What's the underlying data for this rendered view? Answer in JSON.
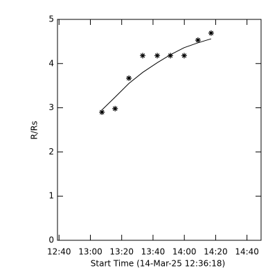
{
  "chart_data": {
    "type": "scatter",
    "x_label": "Start Time (14-Mar-25 12:36:18)",
    "y_label": "R/Rs",
    "x": [
      67.4,
      75.8,
      84.6,
      93.4,
      102.7,
      111.1,
      119.9,
      128.7,
      137.1
    ],
    "series": [
      {
        "style": "markers",
        "color": "#000000",
        "values": [
          2.9,
          2.98,
          3.67,
          4.18,
          4.18,
          4.18,
          4.18,
          4.53,
          4.69
        ]
      },
      {
        "style": "line",
        "color": "#000000",
        "values": [
          2.95,
          3.24,
          3.55,
          3.8,
          4.02,
          4.2,
          4.36,
          4.47,
          4.56
        ]
      }
    ],
    "xlim": [
      39,
      169
    ],
    "ylim": [
      0,
      5
    ],
    "xticks": [
      {
        "value": 40,
        "label": "12:40"
      },
      {
        "value": 60,
        "label": "13:00"
      },
      {
        "value": 80,
        "label": "13:20"
      },
      {
        "value": 100,
        "label": "13:40"
      },
      {
        "value": 120,
        "label": "14:00"
      },
      {
        "value": 140,
        "label": "14:20"
      },
      {
        "value": 160,
        "label": "14:40"
      }
    ],
    "yticks": [
      0,
      1,
      2,
      3,
      4,
      5
    ]
  }
}
